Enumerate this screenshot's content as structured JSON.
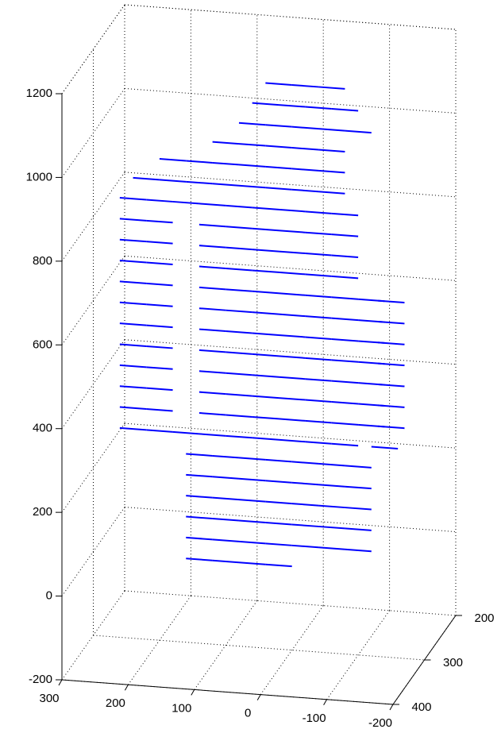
{
  "chart_data": {
    "type": "scatter3d",
    "color": "#0000ff",
    "grid": true,
    "xlim": [
      -200,
      300
    ],
    "xticks": [
      300,
      200,
      100,
      0,
      -100,
      -200
    ],
    "ylim": [
      200,
      400
    ],
    "yticks": [
      200,
      300,
      400
    ],
    "zlim": [
      -200,
      1200
    ],
    "zticks": [
      -200,
      0,
      200,
      400,
      600,
      800,
      1000,
      1200
    ],
    "points": [
      [
        20,
        300,
        1150
      ],
      [
        -20,
        300,
        1150
      ],
      [
        -60,
        300,
        1150
      ],
      [
        40,
        300,
        1100
      ],
      [
        0,
        300,
        1100
      ],
      [
        -40,
        300,
        1100
      ],
      [
        -80,
        300,
        1100
      ],
      [
        60,
        300,
        1050
      ],
      [
        20,
        300,
        1050
      ],
      [
        -20,
        300,
        1050
      ],
      [
        -60,
        300,
        1050
      ],
      [
        -100,
        300,
        1050
      ],
      [
        100,
        300,
        1000
      ],
      [
        60,
        300,
        1000
      ],
      [
        20,
        300,
        1000
      ],
      [
        -20,
        300,
        1000
      ],
      [
        -60,
        300,
        1000
      ],
      [
        180,
        300,
        950
      ],
      [
        140,
        300,
        950
      ],
      [
        100,
        300,
        950
      ],
      [
        60,
        300,
        950
      ],
      [
        20,
        300,
        950
      ],
      [
        -20,
        300,
        950
      ],
      [
        -60,
        300,
        950
      ],
      [
        220,
        300,
        900
      ],
      [
        180,
        300,
        900
      ],
      [
        140,
        300,
        900
      ],
      [
        100,
        300,
        900
      ],
      [
        60,
        300,
        900
      ],
      [
        20,
        300,
        900
      ],
      [
        -20,
        300,
        900
      ],
      [
        -60,
        300,
        900
      ],
      [
        240,
        300,
        850
      ],
      [
        200,
        300,
        850
      ],
      [
        160,
        300,
        850
      ],
      [
        120,
        300,
        850
      ],
      [
        80,
        300,
        850
      ],
      [
        40,
        300,
        850
      ],
      [
        0,
        300,
        850
      ],
      [
        -40,
        300,
        850
      ],
      [
        -80,
        300,
        850
      ],
      [
        240,
        300,
        800
      ],
      [
        200,
        300,
        800
      ],
      [
        120,
        300,
        800
      ],
      [
        80,
        300,
        800
      ],
      [
        40,
        300,
        800
      ],
      [
        0,
        300,
        800
      ],
      [
        -40,
        300,
        800
      ],
      [
        -80,
        300,
        800
      ],
      [
        240,
        300,
        750
      ],
      [
        200,
        300,
        750
      ],
      [
        120,
        300,
        750
      ],
      [
        80,
        300,
        750
      ],
      [
        40,
        300,
        750
      ],
      [
        0,
        300,
        750
      ],
      [
        -40,
        300,
        750
      ],
      [
        -80,
        300,
        750
      ],
      [
        240,
        300,
        700
      ],
      [
        200,
        300,
        700
      ],
      [
        120,
        300,
        700
      ],
      [
        80,
        300,
        700
      ],
      [
        40,
        300,
        700
      ],
      [
        0,
        300,
        700
      ],
      [
        -40,
        300,
        700
      ],
      [
        -80,
        300,
        700
      ],
      [
        240,
        300,
        650
      ],
      [
        200,
        300,
        650
      ],
      [
        120,
        300,
        650
      ],
      [
        80,
        300,
        650
      ],
      [
        40,
        300,
        650
      ],
      [
        0,
        300,
        650
      ],
      [
        -40,
        300,
        650
      ],
      [
        -80,
        300,
        650
      ],
      [
        -120,
        300,
        650
      ],
      [
        -150,
        300,
        650
      ],
      [
        240,
        300,
        600
      ],
      [
        200,
        300,
        600
      ],
      [
        120,
        300,
        600
      ],
      [
        80,
        300,
        600
      ],
      [
        40,
        300,
        600
      ],
      [
        0,
        300,
        600
      ],
      [
        -40,
        300,
        600
      ],
      [
        -80,
        300,
        600
      ],
      [
        -120,
        300,
        600
      ],
      [
        -150,
        300,
        600
      ],
      [
        240,
        300,
        550
      ],
      [
        200,
        300,
        550
      ],
      [
        120,
        300,
        550
      ],
      [
        80,
        300,
        550
      ],
      [
        40,
        300,
        550
      ],
      [
        0,
        300,
        550
      ],
      [
        -40,
        300,
        550
      ],
      [
        -80,
        300,
        550
      ],
      [
        -120,
        300,
        550
      ],
      [
        -150,
        300,
        550
      ],
      [
        240,
        300,
        500
      ],
      [
        200,
        300,
        500
      ],
      [
        120,
        300,
        500
      ],
      [
        80,
        300,
        500
      ],
      [
        40,
        300,
        500
      ],
      [
        0,
        300,
        500
      ],
      [
        -40,
        300,
        500
      ],
      [
        -80,
        300,
        500
      ],
      [
        -120,
        300,
        500
      ],
      [
        -150,
        300,
        500
      ],
      [
        240,
        300,
        450
      ],
      [
        200,
        300,
        450
      ],
      [
        120,
        300,
        450
      ],
      [
        80,
        300,
        450
      ],
      [
        40,
        300,
        450
      ],
      [
        0,
        300,
        450
      ],
      [
        -40,
        300,
        450
      ],
      [
        -80,
        300,
        450
      ],
      [
        -120,
        300,
        450
      ],
      [
        -150,
        300,
        450
      ],
      [
        240,
        300,
        400
      ],
      [
        200,
        300,
        400
      ],
      [
        120,
        300,
        400
      ],
      [
        80,
        300,
        400
      ],
      [
        40,
        300,
        400
      ],
      [
        0,
        300,
        400
      ],
      [
        -40,
        300,
        400
      ],
      [
        -80,
        300,
        400
      ],
      [
        -120,
        300,
        400
      ],
      [
        -150,
        300,
        400
      ],
      [
        240,
        300,
        350
      ],
      [
        200,
        300,
        350
      ],
      [
        120,
        300,
        350
      ],
      [
        80,
        300,
        350
      ],
      [
        40,
        300,
        350
      ],
      [
        0,
        300,
        350
      ],
      [
        -40,
        300,
        350
      ],
      [
        -80,
        300,
        350
      ],
      [
        -120,
        300,
        350
      ],
      [
        -150,
        300,
        350
      ],
      [
        240,
        300,
        300
      ],
      [
        200,
        300,
        300
      ],
      [
        160,
        300,
        300
      ],
      [
        120,
        300,
        300
      ],
      [
        80,
        300,
        300
      ],
      [
        40,
        300,
        300
      ],
      [
        0,
        300,
        300
      ],
      [
        -40,
        300,
        300
      ],
      [
        -80,
        300,
        300
      ],
      [
        -140,
        300,
        300
      ],
      [
        140,
        300,
        250
      ],
      [
        100,
        300,
        250
      ],
      [
        60,
        300,
        250
      ],
      [
        20,
        300,
        250
      ],
      [
        -20,
        300,
        250
      ],
      [
        -60,
        300,
        250
      ],
      [
        -100,
        300,
        250
      ],
      [
        140,
        300,
        200
      ],
      [
        100,
        300,
        200
      ],
      [
        60,
        300,
        200
      ],
      [
        20,
        300,
        200
      ],
      [
        -20,
        300,
        200
      ],
      [
        -60,
        300,
        200
      ],
      [
        -100,
        300,
        200
      ],
      [
        140,
        300,
        150
      ],
      [
        100,
        300,
        150
      ],
      [
        60,
        300,
        150
      ],
      [
        20,
        300,
        150
      ],
      [
        -20,
        300,
        150
      ],
      [
        -60,
        300,
        150
      ],
      [
        -100,
        300,
        150
      ],
      [
        140,
        300,
        100
      ],
      [
        100,
        300,
        100
      ],
      [
        60,
        300,
        100
      ],
      [
        20,
        300,
        100
      ],
      [
        -20,
        300,
        100
      ],
      [
        -60,
        300,
        100
      ],
      [
        -100,
        300,
        100
      ],
      [
        140,
        300,
        50
      ],
      [
        100,
        300,
        50
      ],
      [
        60,
        300,
        50
      ],
      [
        20,
        300,
        50
      ],
      [
        -20,
        300,
        50
      ],
      [
        -60,
        300,
        50
      ],
      [
        -100,
        300,
        50
      ],
      [
        140,
        300,
        0
      ],
      [
        100,
        300,
        0
      ],
      [
        60,
        300,
        0
      ],
      [
        20,
        300,
        0
      ]
    ]
  }
}
